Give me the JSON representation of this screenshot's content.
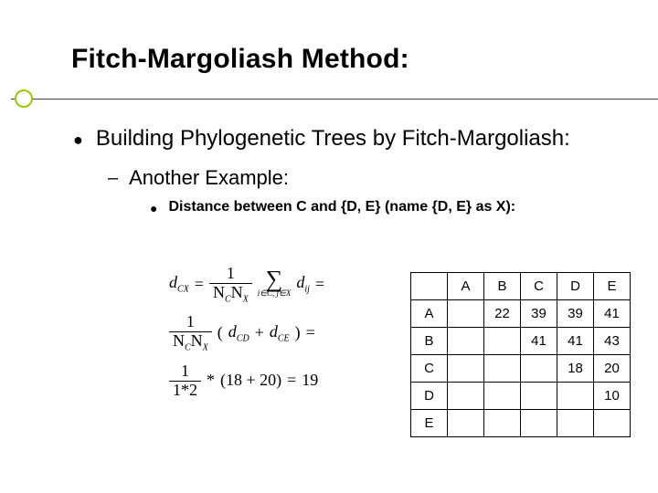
{
  "title": "Fitch-Margoliash Method:",
  "level1": "Building Phylogenetic Trees by Fitch-Margoliash:",
  "level2": "Another Example:",
  "level3": "Distance between C and {D, E} (name {D, E} as X):",
  "formula": {
    "dcx": "d",
    "dcx_sub": "CX",
    "eq": "=",
    "one": "1",
    "ncnx": "N",
    "sub_c": "C",
    "sub_x": "X",
    "sigma_sub": "i∈C, j∈X",
    "dij": "d",
    "dij_sub": "ij",
    "paren_open": "(",
    "dcd": "d",
    "dcd_sub": "CD",
    "plus": "+",
    "dce": "d",
    "dce_sub": "CE",
    "paren_close": ")",
    "star": "*",
    "onestar": "1",
    "onetimes": "1*2",
    "eighteen_twenty": "(18 + 20)",
    "nineteen": "19"
  },
  "matrix": {
    "headers": [
      "",
      "A",
      "B",
      "C",
      "D",
      "E"
    ],
    "rows": [
      {
        "label": "A",
        "cells": [
          "",
          "22",
          "39",
          "39",
          "41"
        ]
      },
      {
        "label": "B",
        "cells": [
          "",
          "",
          "41",
          "41",
          "43"
        ]
      },
      {
        "label": "C",
        "cells": [
          "",
          "",
          "",
          "18",
          "20"
        ]
      },
      {
        "label": "D",
        "cells": [
          "",
          "",
          "",
          "",
          "10"
        ]
      },
      {
        "label": "E",
        "cells": [
          "",
          "",
          "",
          "",
          ""
        ]
      }
    ]
  },
  "colors": {
    "accent": "#99cc00",
    "text": "#000000",
    "bg": "#ffffff",
    "line": "#404040"
  }
}
